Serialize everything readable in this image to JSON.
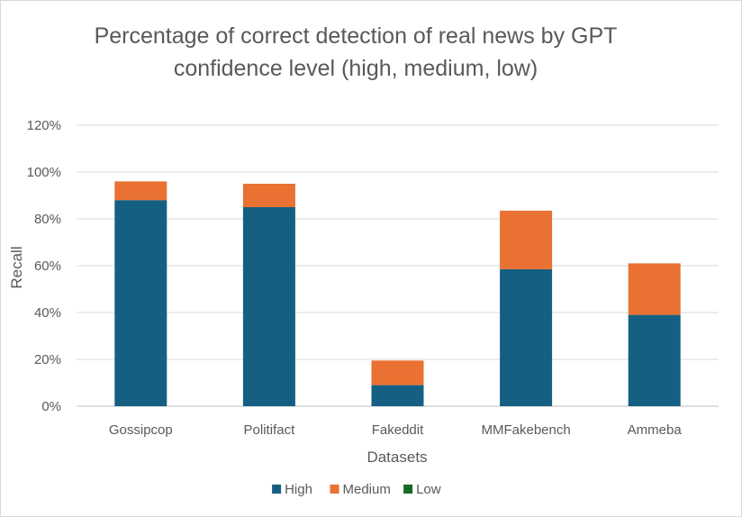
{
  "chart_data": {
    "type": "bar",
    "stacked": true,
    "title_lines": [
      "Percentage of correct detection of real news by GPT",
      "confidence level (high, medium, low)"
    ],
    "xlabel": "Datasets",
    "ylabel": "Recall",
    "categories": [
      "Gossipcop",
      "Politifact",
      "Fakeddit",
      "MMFakebench",
      "Ammeba"
    ],
    "series": [
      {
        "name": "High",
        "color": "#156082",
        "values": [
          88,
          85,
          9,
          58.5,
          39
        ]
      },
      {
        "name": "Medium",
        "color": "#e97132",
        "values": [
          8,
          10,
          10.5,
          25,
          22
        ]
      },
      {
        "name": "Low",
        "color": "#196b24",
        "values": [
          0,
          0,
          0,
          0,
          0
        ]
      }
    ],
    "ylim": [
      0,
      120
    ],
    "yticks": [
      0,
      20,
      40,
      60,
      80,
      100,
      120
    ],
    "ytick_labels": [
      "0%",
      "20%",
      "40%",
      "60%",
      "80%",
      "100%",
      "120%"
    ],
    "grid": true,
    "legend_position": "bottom"
  }
}
